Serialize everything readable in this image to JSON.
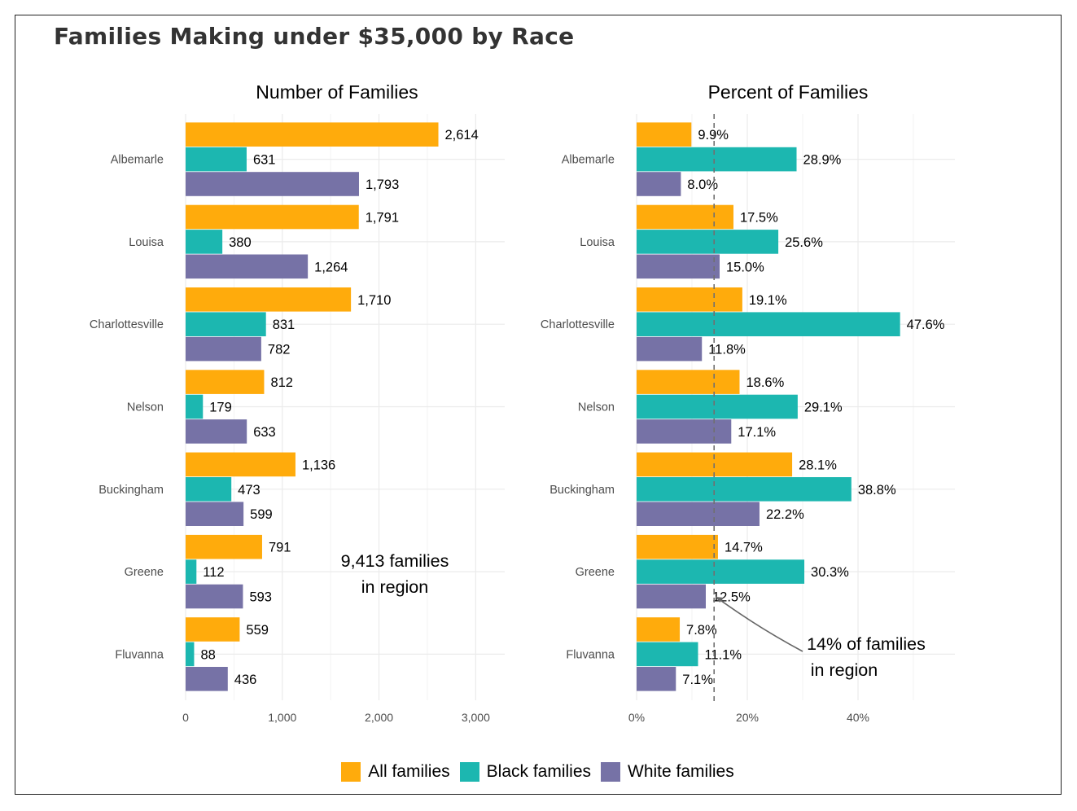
{
  "title": "Families Making under $35,000 by Race",
  "colors": {
    "all": "#FFAB0C",
    "black": "#1CB7B0",
    "white": "#7672A6"
  },
  "legend": [
    {
      "key": "all",
      "label": "All families"
    },
    {
      "key": "black",
      "label": "Black families"
    },
    {
      "key": "white",
      "label": "White families"
    }
  ],
  "chart_data": [
    {
      "type": "bar",
      "orientation": "horizontal",
      "title": "Number of Families",
      "categories": [
        "Albemarle",
        "Louisa",
        "Charlottesville",
        "Nelson",
        "Buckingham",
        "Greene",
        "Fluvanna"
      ],
      "series": [
        {
          "name": "All families",
          "key": "all",
          "values": [
            2614,
            1791,
            1710,
            812,
            1136,
            791,
            559
          ],
          "labels": [
            "2,614",
            "1,791",
            "1,710",
            "812",
            "1,136",
            "791",
            "559"
          ]
        },
        {
          "name": "Black families",
          "key": "black",
          "values": [
            631,
            380,
            831,
            179,
            473,
            112,
            88
          ],
          "labels": [
            "631",
            "380",
            "831",
            "179",
            "473",
            "112",
            "88"
          ]
        },
        {
          "name": "White families",
          "key": "white",
          "values": [
            1793,
            1264,
            782,
            633,
            599,
            593,
            436
          ],
          "labels": [
            "1,793",
            "1,264",
            "782",
            "633",
            "599",
            "593",
            "436"
          ]
        }
      ],
      "xlim": [
        0,
        3300
      ],
      "ticks": [
        0,
        1000,
        2000,
        3000
      ],
      "tick_labels": [
        "0",
        "1,000",
        "2,000",
        "3,000"
      ],
      "annotation": {
        "lines": [
          "9,413 families",
          "in region"
        ]
      },
      "grid": true
    },
    {
      "type": "bar",
      "orientation": "horizontal",
      "title": "Percent of Families",
      "categories": [
        "Albemarle",
        "Louisa",
        "Charlottesville",
        "Nelson",
        "Buckingham",
        "Greene",
        "Fluvanna"
      ],
      "series": [
        {
          "name": "All families",
          "key": "all",
          "values": [
            9.9,
            17.5,
            19.1,
            18.6,
            28.1,
            14.7,
            7.8
          ],
          "labels": [
            "9.9%",
            "17.5%",
            "19.1%",
            "18.6%",
            "28.1%",
            "14.7%",
            "7.8%"
          ]
        },
        {
          "name": "Black families",
          "key": "black",
          "values": [
            28.9,
            25.6,
            47.6,
            29.1,
            38.8,
            30.3,
            11.1
          ],
          "labels": [
            "28.9%",
            "25.6%",
            "47.6%",
            "29.1%",
            "38.8%",
            "30.3%",
            "11.1%"
          ]
        },
        {
          "name": "White families",
          "key": "white",
          "values": [
            8.0,
            15.0,
            11.8,
            17.1,
            22.2,
            12.5,
            7.1
          ],
          "labels": [
            "8.0%",
            "15.0%",
            "11.8%",
            "17.1%",
            "22.2%",
            "12.5%",
            "7.1%"
          ]
        }
      ],
      "xlim": [
        0,
        57.5
      ],
      "ticks": [
        0,
        20,
        40
      ],
      "tick_labels": [
        "0%",
        "20%",
        "40%"
      ],
      "reference_line": {
        "value": 14,
        "style": "dashed"
      },
      "annotation": {
        "lines": [
          "14% of families",
          "in region"
        ]
      },
      "grid": true
    }
  ]
}
